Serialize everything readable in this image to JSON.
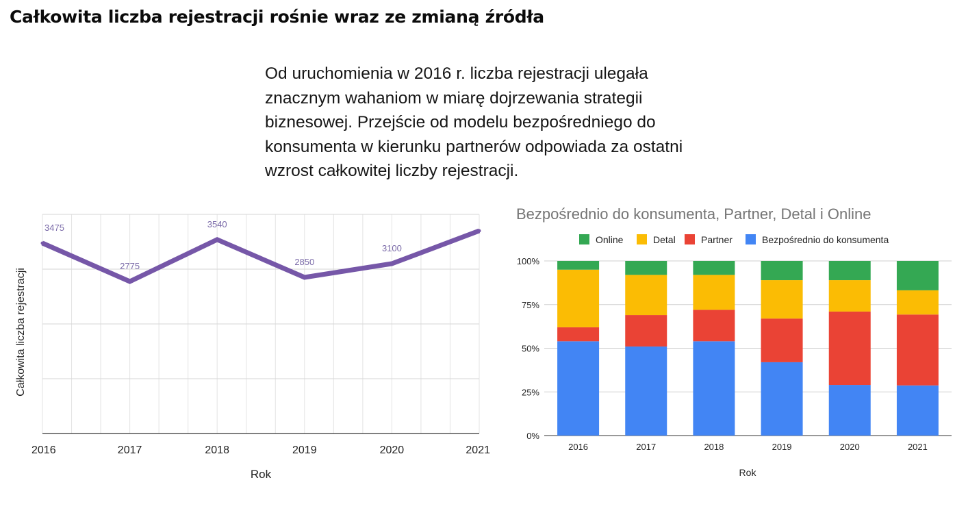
{
  "title": "Całkowita liczba rejestracji rośnie wraz ze zmianą źródła",
  "intro_text": "Od uruchomienia w 2016 r. liczba rejestracji ulegała znacznym wahaniom w miarę dojrzewania strategii biznesowej. Przejście od modelu bezpośredniego do konsumenta w kierunku partnerów odpowiada za ostatni wzrost całkowitej liczby rejestracji.",
  "colors": {
    "line": "#7657a8",
    "online": "#34a853",
    "detal": "#fbbc04",
    "partner": "#ea4335",
    "direct": "#4285f4"
  },
  "chart_data": [
    {
      "type": "line",
      "title": "",
      "xlabel": "Rok",
      "ylabel": "Całkowita liczba rejestracji",
      "x": [
        "2016",
        "2017",
        "2018",
        "2019",
        "2020",
        "2021"
      ],
      "series": [
        {
          "values": [
            3475,
            2775,
            3540,
            2850,
            3100,
            3700
          ]
        }
      ],
      "data_labels": [
        "3475",
        "2775",
        "3540",
        "2850",
        "3100",
        ""
      ],
      "ylim": [
        0,
        4000
      ],
      "grid": true
    },
    {
      "type": "bar",
      "stacked": "percent",
      "title": "Bezpośrednio do konsumenta, Partner, Detal i Online",
      "xlabel": "Rok",
      "ylabel": "",
      "categories": [
        "2016",
        "2017",
        "2018",
        "2019",
        "2020",
        "2021"
      ],
      "y_ticks": [
        "0%",
        "25%",
        "50%",
        "75%",
        "100%"
      ],
      "legend_position": "top",
      "legend": [
        "Online",
        "Detal",
        "Partner",
        "Bezpośrednio do konsumenta"
      ],
      "series": [
        {
          "name": "Bezpośrednio do konsumenta",
          "values": [
            54,
            51,
            54,
            42,
            29,
            29
          ]
        },
        {
          "name": "Partner",
          "values": [
            8,
            18,
            18,
            25,
            42,
            41
          ]
        },
        {
          "name": "Detal",
          "values": [
            33,
            23,
            20,
            22,
            18,
            14
          ]
        },
        {
          "name": "Online",
          "values": [
            5,
            8,
            8,
            11,
            11,
            17
          ]
        }
      ],
      "ylim": [
        0,
        100
      ],
      "grid": true
    }
  ]
}
